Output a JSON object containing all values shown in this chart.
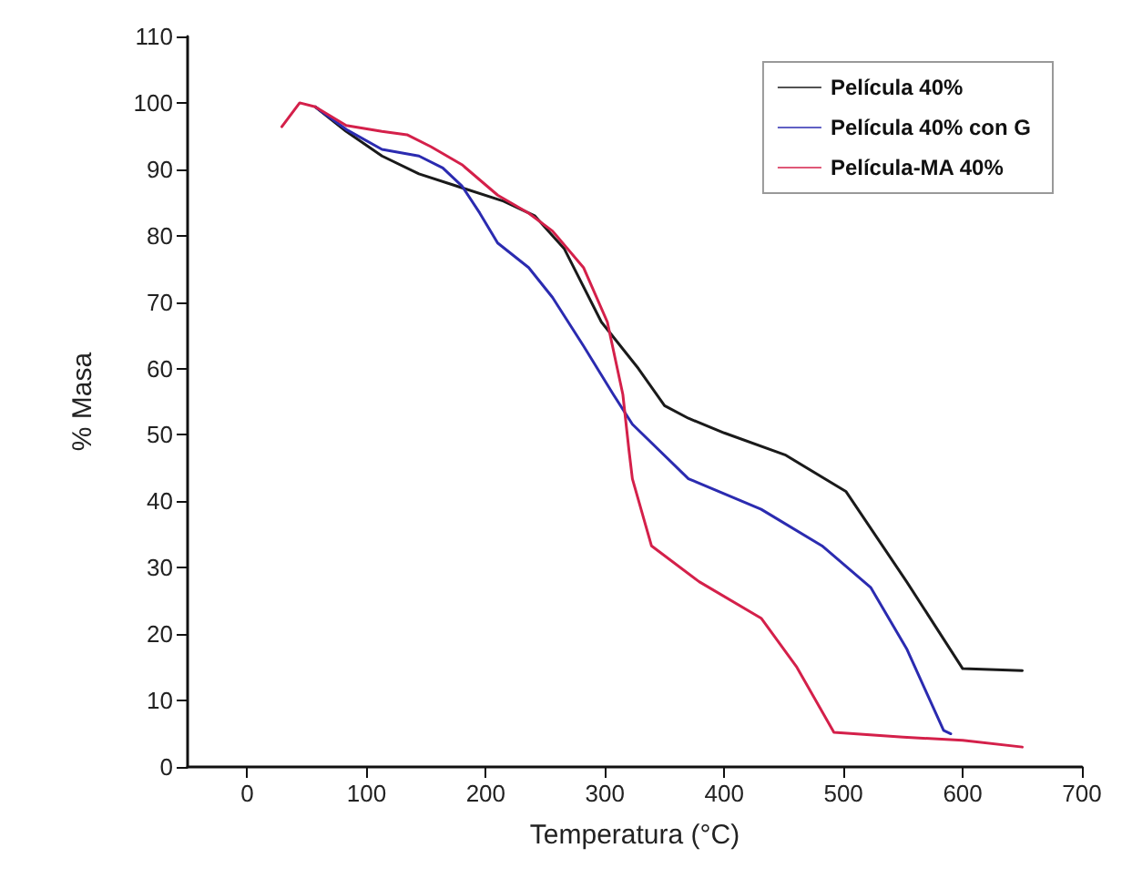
{
  "chart_data": {
    "type": "line",
    "xlabel": "Temperatura (°C)",
    "ylabel": "% Masa",
    "xlim": [
      -50,
      700
    ],
    "xticks": [
      0,
      100,
      200,
      300,
      400,
      500,
      600,
      700
    ],
    "ylim": [
      0,
      110
    ],
    "yticks": [
      0,
      10,
      20,
      30,
      40,
      50,
      60,
      70,
      80,
      90,
      100,
      110
    ],
    "grid": false,
    "legend": "top right",
    "marker": "none",
    "line_style": "solid",
    "series": [
      {
        "name": "Película 40%",
        "color": "#1a1a1a",
        "x": [
          57,
          83,
          113,
          144,
          175,
          215,
          241,
          266,
          297,
          328,
          350,
          370,
          400,
          451,
          502,
          553,
          600,
          650
        ],
        "values": [
          99.4,
          95.7,
          92,
          89.3,
          87.5,
          85.2,
          83,
          78,
          67,
          60,
          54.4,
          52.5,
          50.3,
          47,
          41.5,
          27.9,
          14.8,
          14.5
        ]
      },
      {
        "name": "Película 40% con G",
        "color": "#2b2bb0",
        "x": [
          57,
          83,
          113,
          144,
          164,
          180,
          195,
          210,
          236,
          256,
          282,
          307,
          323,
          370,
          431,
          482,
          523,
          553,
          584,
          590
        ],
        "values": [
          99.4,
          96,
          93,
          92,
          90.2,
          87.5,
          83.4,
          78.9,
          75.2,
          70.7,
          63.4,
          56.1,
          51.6,
          43.4,
          38.8,
          33.3,
          27,
          17.8,
          5.5,
          5
        ]
      },
      {
        "name": "Película-MA 40%",
        "color": "#d4204a",
        "x": [
          29,
          44,
          57,
          83,
          113,
          134,
          154,
          180,
          210,
          236,
          256,
          282,
          302,
          315,
          320,
          323,
          339,
          379,
          431,
          461,
          492,
          550,
          600,
          650
        ],
        "values": [
          96.4,
          100,
          99.4,
          96.6,
          95.7,
          95.2,
          93.4,
          90.7,
          86.1,
          83.4,
          80.7,
          75.2,
          67,
          56.1,
          47.9,
          43.4,
          33.3,
          27.9,
          22.4,
          15,
          5.2,
          4.5,
          4,
          3
        ]
      }
    ]
  }
}
